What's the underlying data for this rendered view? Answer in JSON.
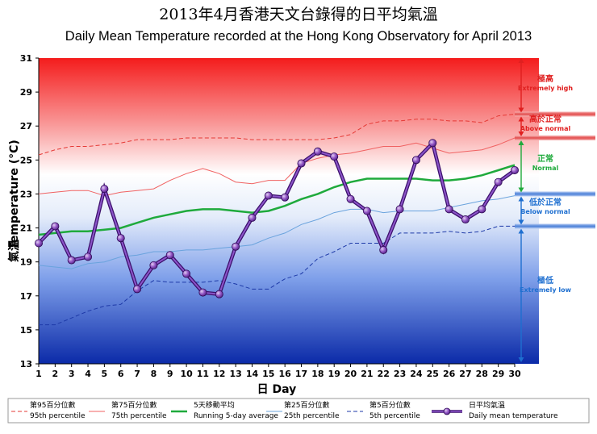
{
  "chart_data": {
    "type": "line",
    "title": "2013年4月香港天文台錄得的日平均氣溫",
    "subtitle": "Daily Mean Temperature recorded at the Hong Kong Observatory for April 2013",
    "xlabel": "日 Day",
    "ylabel_zh": "氣溫",
    "ylabel_en": "Temperature (°C)",
    "ylim": [
      13,
      31
    ],
    "yticks": [
      13,
      15,
      17,
      19,
      21,
      23,
      25,
      27,
      29,
      31
    ],
    "x": [
      1,
      2,
      3,
      4,
      5,
      6,
      7,
      8,
      9,
      10,
      11,
      12,
      13,
      14,
      15,
      16,
      17,
      18,
      19,
      20,
      21,
      22,
      23,
      24,
      25,
      26,
      27,
      28,
      29,
      30
    ],
    "series": [
      {
        "key": "p95",
        "name_zh": "第95百分位數",
        "name": "95th percentile",
        "color": "#e53935",
        "style": "dashed",
        "values": [
          25.3,
          25.6,
          25.8,
          25.8,
          25.9,
          26.0,
          26.2,
          26.2,
          26.2,
          26.3,
          26.3,
          26.3,
          26.3,
          26.2,
          26.2,
          26.2,
          26.2,
          26.2,
          26.3,
          26.5,
          27.1,
          27.3,
          27.3,
          27.4,
          27.4,
          27.3,
          27.3,
          27.2,
          27.6,
          27.7
        ]
      },
      {
        "key": "p75",
        "name_zh": "第75百分位數",
        "name": "75th percentile",
        "color": "#f06262",
        "style": "solid",
        "values": [
          23.0,
          23.1,
          23.2,
          23.2,
          22.9,
          23.1,
          23.2,
          23.3,
          23.8,
          24.2,
          24.5,
          24.2,
          23.7,
          23.6,
          23.8,
          23.8,
          24.8,
          25.1,
          25.3,
          25.4,
          25.6,
          25.8,
          25.8,
          26.0,
          25.7,
          25.4,
          25.5,
          25.6,
          25.9,
          26.3
        ]
      },
      {
        "key": "avg5",
        "name_zh": "5天移動平均",
        "name": "Running 5-day average",
        "color": "#1faa3c",
        "style": "solid",
        "values": [
          20.6,
          20.7,
          20.8,
          20.8,
          20.9,
          21.0,
          21.3,
          21.6,
          21.8,
          22.0,
          22.1,
          22.1,
          22.0,
          21.9,
          22.0,
          22.3,
          22.7,
          23.0,
          23.4,
          23.7,
          23.9,
          23.9,
          23.9,
          23.9,
          23.8,
          23.8,
          23.9,
          24.1,
          24.4,
          24.7
        ]
      },
      {
        "key": "p25",
        "name_zh": "第25百分位數",
        "name": "25th percentile",
        "color": "#6aa3dd",
        "style": "solid",
        "values": [
          18.8,
          18.7,
          18.6,
          18.9,
          19.0,
          19.3,
          19.4,
          19.6,
          19.6,
          19.7,
          19.7,
          19.8,
          19.9,
          20.0,
          20.4,
          20.7,
          21.2,
          21.5,
          21.9,
          22.1,
          22.1,
          21.9,
          22.0,
          22.0,
          22.0,
          22.2,
          22.4,
          22.6,
          22.7,
          22.9
        ]
      },
      {
        "key": "p5",
        "name_zh": "第5百分位數",
        "name": "5th percentile",
        "color": "#1e3aa8",
        "style": "dashed",
        "values": [
          15.3,
          15.3,
          15.7,
          16.1,
          16.4,
          16.5,
          17.3,
          17.9,
          17.8,
          17.8,
          17.8,
          17.9,
          17.7,
          17.4,
          17.4,
          18.0,
          18.3,
          19.2,
          19.6,
          20.1,
          20.1,
          20.1,
          20.7,
          20.7,
          20.7,
          20.8,
          20.7,
          20.8,
          21.1,
          21.1
        ]
      },
      {
        "key": "daily",
        "name_zh": "日平均氣溫",
        "name": "Daily mean temperature",
        "color": "#6b2fa0",
        "style": "markers",
        "values": [
          20.1,
          21.1,
          19.1,
          19.3,
          23.3,
          20.4,
          17.4,
          18.8,
          19.4,
          18.3,
          17.2,
          17.1,
          19.9,
          21.6,
          22.9,
          22.8,
          24.8,
          25.5,
          25.2,
          22.7,
          22.0,
          19.7,
          22.1,
          25.0,
          26.0,
          22.1,
          21.5,
          22.1,
          23.7,
          24.4
        ]
      }
    ],
    "bands": [
      {
        "key": "extreme_high",
        "zh": "極高",
        "en": "Extremely high",
        "color": "#e02020"
      },
      {
        "key": "above_normal",
        "zh": "高於正常",
        "en": "Above normal",
        "color": "#e02020"
      },
      {
        "key": "normal",
        "zh": "正常",
        "en": "Normal",
        "color": "#1faa3c"
      },
      {
        "key": "below_normal",
        "zh": "低於正常",
        "en": "Below normal",
        "color": "#1e6fd0"
      },
      {
        "key": "extreme_low",
        "zh": "極低",
        "en": "Extremely low",
        "color": "#1e6fd0"
      }
    ],
    "legend_placement": "bottom",
    "grid": false
  }
}
